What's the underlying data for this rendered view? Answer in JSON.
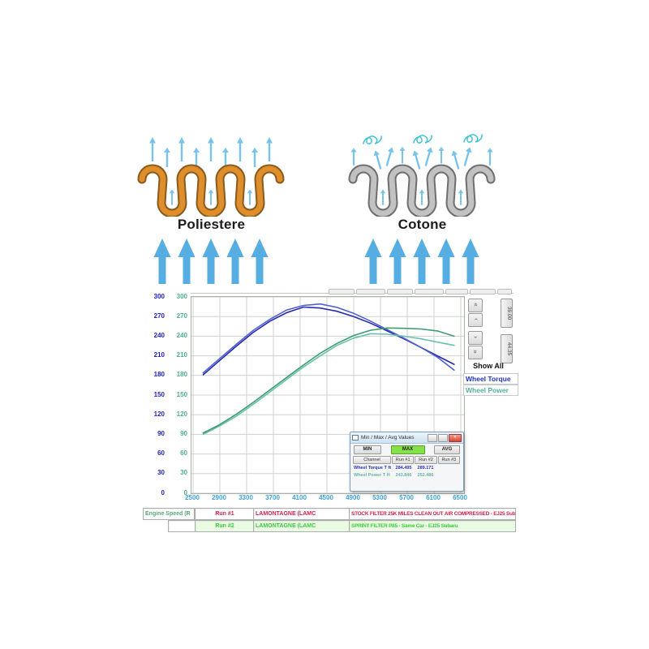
{
  "filters": {
    "left_label": "Poliestere",
    "right_label": "Cotone"
  },
  "dyno_ui": {
    "show_all_label": "Show All",
    "legend": {
      "torque_label": "Wheel Torque",
      "power_label": "Wheel Power",
      "torque_color": "#2233bb",
      "power_color": "#55b39a"
    },
    "scale_buttons": [
      "39.00",
      "44.35"
    ],
    "icons": {
      "scroll_double_up": "»",
      "scroll_up": "›",
      "scroll_down": "›",
      "scroll_double_down": "»",
      "close_icon": "×"
    },
    "popup": {
      "title": "Min / Max / Avg Values",
      "min_label": "MIN",
      "max_label": "MAX",
      "avg_label": "AVG",
      "active": "MAX",
      "headers": [
        "Channel",
        "Run #1",
        "Run #2",
        "Run #3"
      ],
      "rows": [
        {
          "channel": "Wheel Torque T ft",
          "run1": "284.495",
          "run2": "289.171",
          "run3": ""
        },
        {
          "channel": "Wheel Power T H",
          "run1": "243.846",
          "run2": "252.486",
          "run3": ""
        }
      ]
    },
    "footer": {
      "axis_cell": "Engine Speed (R",
      "rows": [
        {
          "run": "Run #1",
          "operator": "LAMONTAGNE (LAMC",
          "description": "STOCK FILTER 25K MILES CLEAN OUT AIR COMPRESSED - EJ25 Subaru"
        },
        {
          "run": "Run #2",
          "operator": "LAMONTAGNE (LAMC",
          "description": "SPRINT FILTER P85 - Same Car - EJ25 Subaru"
        }
      ]
    }
  },
  "chart_data": {
    "type": "line",
    "xlabel": "Engine Speed (R",
    "ylabel_left": "Wheel Torque",
    "ylabel_right": "Wheel Power",
    "ylim": [
      0,
      300
    ],
    "ytick_step": 30,
    "x_ticks": [
      2500,
      2900,
      3300,
      3700,
      4100,
      4500,
      4900,
      5300,
      5700,
      6100,
      6500
    ],
    "x": [
      2650,
      2900,
      3150,
      3400,
      3650,
      3900,
      4150,
      4400,
      4650,
      4900,
      5150,
      5400,
      5650,
      5900,
      6150,
      6400
    ],
    "grid": true,
    "legend_position": "right",
    "series": [
      {
        "name": "Wheel Torque Run #1",
        "color": "#2a2ab0",
        "values": [
          181,
          203,
          225,
          246,
          263,
          276,
          284.5,
          283,
          278,
          270,
          260,
          248,
          236,
          223,
          210,
          197
        ]
      },
      {
        "name": "Wheel Torque Run #2",
        "color": "#4e62ce",
        "values": [
          184,
          206,
          228,
          249,
          266,
          280,
          287,
          289.2,
          284,
          275,
          263,
          250,
          237,
          223,
          208,
          188
        ]
      },
      {
        "name": "Wheel Power Run #1",
        "color": "#6bc2ac",
        "values": [
          90,
          103,
          118,
          136,
          155,
          174,
          193,
          210,
          226,
          237,
          243.8,
          243,
          240,
          236,
          231,
          226
        ]
      },
      {
        "name": "Wheel Power Run #2",
        "color": "#3e9b72",
        "values": [
          92,
          105,
          121,
          139,
          158,
          177,
          196,
          214,
          229,
          241,
          249,
          252.5,
          252,
          251,
          248,
          240
        ]
      }
    ]
  }
}
